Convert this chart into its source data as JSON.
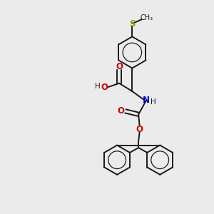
{
  "background_color": "#ebebeb",
  "bond_color": "#1a1a1a",
  "O_color": "#cc0000",
  "N_color": "#0000cc",
  "S_color": "#999900",
  "figsize": [
    3.0,
    3.0
  ],
  "dpi": 100,
  "xlim": [
    0,
    10
  ],
  "ylim": [
    0,
    10
  ]
}
